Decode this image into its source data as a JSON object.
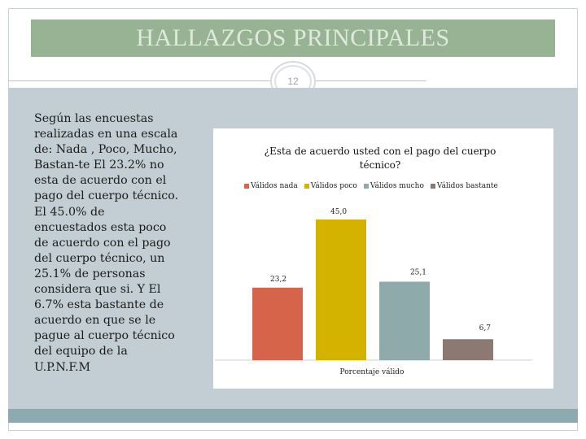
{
  "slide": {
    "title": "HALLAZGOS PRINCIPALES",
    "page_number": "12",
    "body_text": "Según las encuestas realizadas en una escala de: Nada , Poco, Mucho, Bastan-te El 23.2% no esta de acuerdo con el pago del cuerpo técnico. El 45.0% de encuestados esta poco de acuerdo con el pago del cuerpo técnico, un 25.1% de personas considera que si. Y El 6.7% esta bastante de acuerdo en que se le pague al cuerpo técnico del equipo de la U.P.N.F.M"
  },
  "colors": {
    "title_bar": "#97b394",
    "panel": "#c2ced3",
    "footer": "#8eaab1"
  },
  "chart_data": {
    "type": "bar",
    "title": "¿Esta de acuerdo usted con el pago del cuerpo técnico?",
    "xlabel": "Porcentaje válido",
    "ylabel": "",
    "ylim": [
      0,
      50
    ],
    "series": [
      {
        "name": "Válidos nada",
        "value": 23.2,
        "label": "23,2",
        "color": "#d5644b"
      },
      {
        "name": "Válidos poco",
        "value": 45.0,
        "label": "45,0",
        "color": "#d3b300"
      },
      {
        "name": "Válidos mucho",
        "value": 25.1,
        "label": "25,1",
        "color": "#8eaaab"
      },
      {
        "name": "Válidos bastante",
        "value": 6.7,
        "label": "6,7",
        "color": "#8c7a72"
      }
    ]
  }
}
